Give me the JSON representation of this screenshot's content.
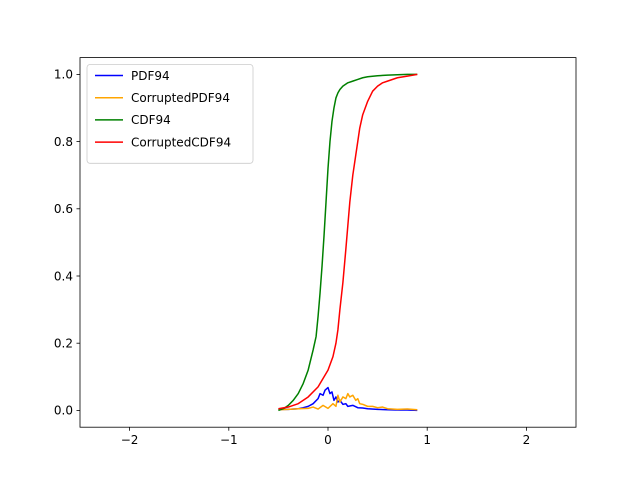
{
  "chart_data": {
    "type": "line",
    "title": "",
    "xlabel": "",
    "ylabel": "",
    "xlim": [
      -2.5,
      2.5
    ],
    "ylim": [
      -0.05,
      1.05
    ],
    "xticks": [
      -2,
      -1,
      0,
      1,
      2
    ],
    "xtick_labels": [
      "−2",
      "−1",
      "0",
      "1",
      "2"
    ],
    "yticks": [
      0.0,
      0.2,
      0.4,
      0.6,
      0.8,
      1.0
    ],
    "ytick_labels": [
      "0.0",
      "0.2",
      "0.4",
      "0.6",
      "0.8",
      "1.0"
    ],
    "grid": false,
    "legend_position": "top-left",
    "series": [
      {
        "name": "PDF94",
        "color": "#0000ff",
        "x": [
          -0.5,
          -0.4,
          -0.3,
          -0.25,
          -0.2,
          -0.15,
          -0.1,
          -0.08,
          -0.05,
          -0.03,
          0.0,
          0.02,
          0.04,
          0.06,
          0.08,
          0.1,
          0.12,
          0.15,
          0.18,
          0.2,
          0.25,
          0.3,
          0.35,
          0.4,
          0.5,
          0.6,
          0.7,
          0.8,
          0.9
        ],
        "y": [
          0.003,
          0.003,
          0.005,
          0.008,
          0.012,
          0.02,
          0.035,
          0.05,
          0.045,
          0.06,
          0.068,
          0.05,
          0.055,
          0.03,
          0.04,
          0.025,
          0.03,
          0.018,
          0.02,
          0.012,
          0.015,
          0.008,
          0.007,
          0.005,
          0.003,
          0.002,
          0.001,
          0.001,
          0.0
        ]
      },
      {
        "name": "CorruptedPDF94",
        "color": "#ffa500",
        "x": [
          -0.5,
          -0.4,
          -0.3,
          -0.2,
          -0.15,
          -0.1,
          -0.05,
          0.0,
          0.05,
          0.08,
          0.1,
          0.12,
          0.15,
          0.18,
          0.2,
          0.22,
          0.25,
          0.28,
          0.3,
          0.32,
          0.35,
          0.4,
          0.45,
          0.5,
          0.55,
          0.6,
          0.7,
          0.8,
          0.9
        ],
        "y": [
          0.002,
          0.003,
          0.005,
          0.006,
          0.01,
          0.004,
          0.015,
          0.006,
          0.02,
          0.012,
          0.045,
          0.025,
          0.04,
          0.035,
          0.05,
          0.04,
          0.045,
          0.03,
          0.035,
          0.02,
          0.018,
          0.012,
          0.012,
          0.008,
          0.01,
          0.005,
          0.003,
          0.004,
          0.002
        ]
      },
      {
        "name": "CDF94",
        "color": "#008000",
        "x": [
          -0.5,
          -0.45,
          -0.4,
          -0.35,
          -0.3,
          -0.25,
          -0.2,
          -0.15,
          -0.12,
          -0.1,
          -0.08,
          -0.06,
          -0.04,
          -0.02,
          0.0,
          0.02,
          0.04,
          0.06,
          0.08,
          0.1,
          0.12,
          0.15,
          0.2,
          0.25,
          0.3,
          0.35,
          0.4,
          0.5,
          0.6,
          0.7,
          0.8,
          0.9
        ],
        "y": [
          0.0,
          0.005,
          0.015,
          0.03,
          0.05,
          0.08,
          0.12,
          0.18,
          0.22,
          0.28,
          0.35,
          0.43,
          0.52,
          0.62,
          0.72,
          0.8,
          0.86,
          0.9,
          0.93,
          0.945,
          0.955,
          0.965,
          0.975,
          0.98,
          0.985,
          0.99,
          0.993,
          0.996,
          0.998,
          0.999,
          1.0,
          1.0
        ]
      },
      {
        "name": "CorruptedCDF94",
        "color": "#ff0000",
        "x": [
          -0.5,
          -0.4,
          -0.3,
          -0.2,
          -0.1,
          0.0,
          0.05,
          0.08,
          0.1,
          0.12,
          0.15,
          0.18,
          0.2,
          0.22,
          0.25,
          0.28,
          0.3,
          0.32,
          0.35,
          0.4,
          0.45,
          0.5,
          0.55,
          0.6,
          0.7,
          0.8,
          0.9
        ],
        "y": [
          0.005,
          0.01,
          0.02,
          0.04,
          0.07,
          0.12,
          0.16,
          0.2,
          0.24,
          0.3,
          0.38,
          0.48,
          0.55,
          0.62,
          0.7,
          0.76,
          0.8,
          0.84,
          0.88,
          0.92,
          0.95,
          0.965,
          0.975,
          0.98,
          0.99,
          0.995,
          1.0
        ]
      }
    ]
  }
}
